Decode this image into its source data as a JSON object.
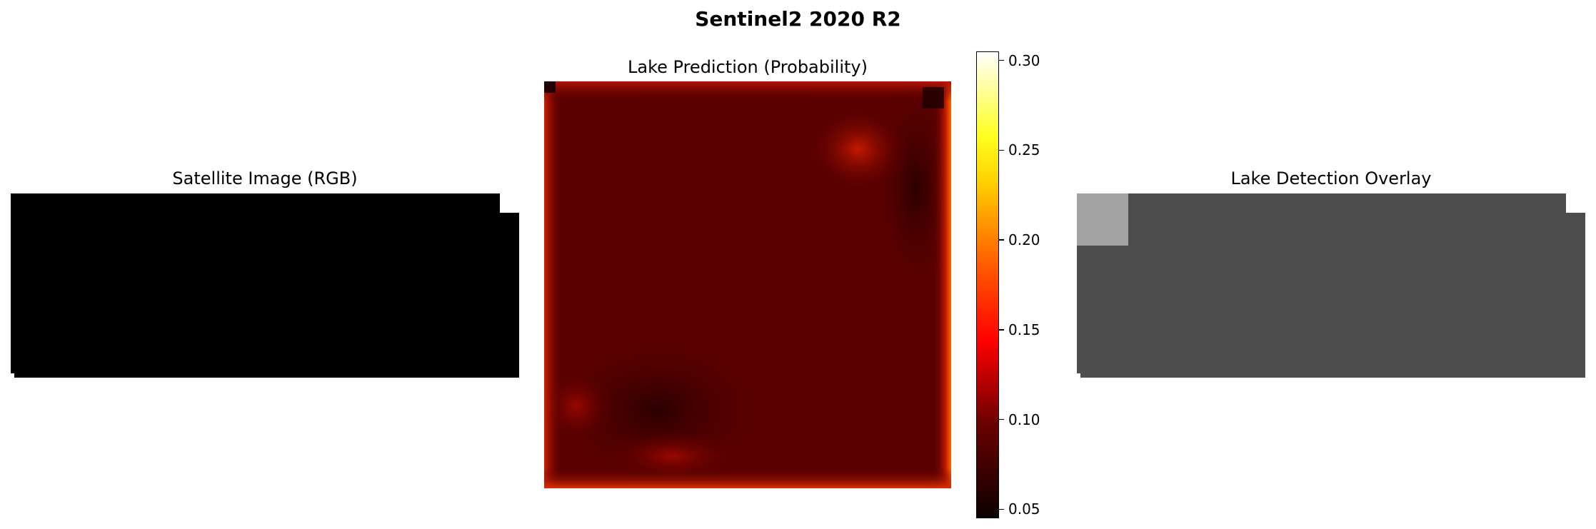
{
  "title": "Sentinel2 2020 R2",
  "panels": {
    "rgb": {
      "title": "Satellite Image (RGB)"
    },
    "prediction": {
      "title": "Lake Prediction (Probability)"
    },
    "overlay": {
      "title": "Lake Detection Overlay"
    }
  },
  "colors": {
    "rgb_fill": "#000000",
    "overlay_fill": "#4d4d4d",
    "overlay_highlight": "#a3a3a3"
  },
  "chart_data": [
    {
      "type": "heatmap",
      "title": "Satellite Image (RGB)",
      "description_values": "uniform black image",
      "axis": "off"
    },
    {
      "type": "heatmap",
      "title": "Lake Prediction (Probability)",
      "colormap": "hot",
      "axis": "off",
      "colorbar": {
        "vmin": 0.045,
        "vmax": 0.305,
        "ticks": [
          0.05,
          0.1,
          0.15,
          0.2,
          0.25,
          0.3
        ],
        "tick_labels": [
          "0.05",
          "0.10",
          "0.15",
          "0.20",
          "0.25",
          "0.30"
        ]
      },
      "interior_value_range": [
        0.06,
        0.1
      ],
      "edge_value_range": [
        0.12,
        0.22
      ],
      "hotspots": [
        {
          "region": "top-right",
          "value": 0.13
        },
        {
          "region": "bottom-left",
          "value": 0.12
        },
        {
          "region": "bottom-center",
          "value": 0.11
        }
      ]
    },
    {
      "type": "heatmap",
      "title": "Lake Detection Overlay",
      "axis": "off",
      "highlighted_region": "top-left"
    }
  ]
}
